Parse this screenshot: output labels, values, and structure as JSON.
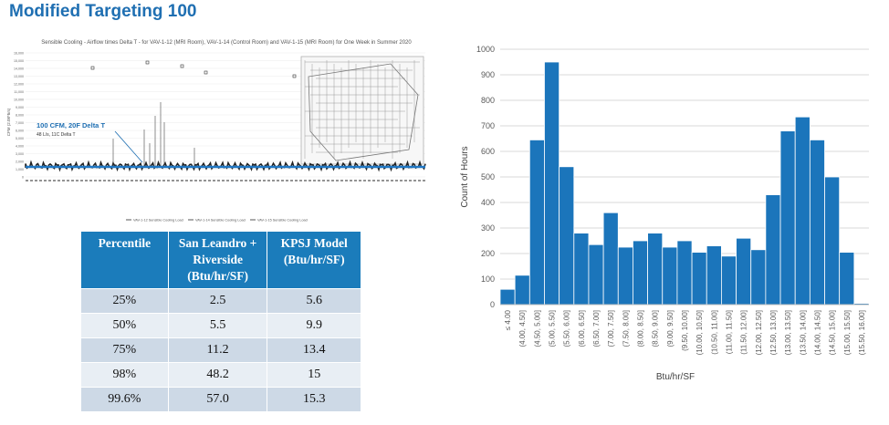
{
  "slide_title": "Modified Targeting 100",
  "scatter": {
    "title": "Sensible Cooling - Airflow times Delta T - for VAV-1-12 (MRI Room), VAV-1-14 (Control Room) and VAV-1-15 (MRI Room) for One Week in Summer 2020",
    "ylabel": "CFM (2.08*h/s)",
    "yticks": [
      "16,000",
      "15,000",
      "14,000",
      "13,000",
      "12,000",
      "11,000",
      "10,000",
      "9,000",
      "8,000",
      "7,000",
      "6,000",
      "5,000",
      "4,000",
      "3,000",
      "2,000",
      "1,000",
      "0"
    ],
    "annotation_main": "100 CFM, 20F Delta T",
    "annotation_sub": "48 L/s, 11C Delta T",
    "legend": [
      "VAV-1-12 Sensible Cooling Load",
      "VAV-1-14 Sensible Cooling Load",
      "VAV-1-15 Sensible Cooling Load"
    ]
  },
  "table": {
    "headers": [
      "Percentile",
      "San Leandro + Riverside (Btu/hr/SF)",
      "KPSJ Model (Btu/hr/SF)"
    ],
    "rows": [
      [
        "25%",
        "2.5",
        "5.6"
      ],
      [
        "50%",
        "5.5",
        "9.9"
      ],
      [
        "75%",
        "11.2",
        "13.4"
      ],
      [
        "98%",
        "48.2",
        "15"
      ],
      [
        "99.6%",
        "57.0",
        "15.3"
      ]
    ]
  },
  "colors": {
    "bar": "#1b75bb",
    "title": "#1f6fb2",
    "header": "#1b7cbb",
    "scatter_line": "#1f77c4"
  },
  "chart_data": {
    "type": "bar",
    "title": "",
    "xlabel": "Btu/hr/SF",
    "ylabel": "Count of Hours",
    "ylim": [
      0,
      1000
    ],
    "yticks": [
      0,
      100,
      200,
      300,
      400,
      500,
      600,
      700,
      800,
      900,
      1000
    ],
    "grid": true,
    "categories": [
      "≤ 4.00",
      "(4.00, 4.50]",
      "(4.50, 5.00]",
      "(5.00, 5.50]",
      "(5.50, 6.00]",
      "(6.00, 6.50]",
      "(6.50, 7.00]",
      "(7.00, 7.50]",
      "(7.50, 8.00]",
      "(8.00, 8.50]",
      "(8.50, 9.00]",
      "(9.00, 9.50]",
      "(9.50, 10.00]",
      "(10.00, 10.50]",
      "(10.50, 11.00]",
      "(11.00, 11.50]",
      "(11.50, 12.00]",
      "(12.00, 12.50]",
      "(12.50, 13.00]",
      "(13.00, 13.50]",
      "(13.50, 14.00]",
      "(14.00, 14.50]",
      "(14.50, 15.00]",
      "(15.00, 15.50]",
      "(15.50, 16.00]"
    ],
    "values": [
      60,
      115,
      645,
      950,
      540,
      280,
      235,
      360,
      225,
      250,
      280,
      225,
      250,
      205,
      230,
      190,
      260,
      215,
      430,
      680,
      735,
      645,
      500,
      205,
      5
    ]
  }
}
